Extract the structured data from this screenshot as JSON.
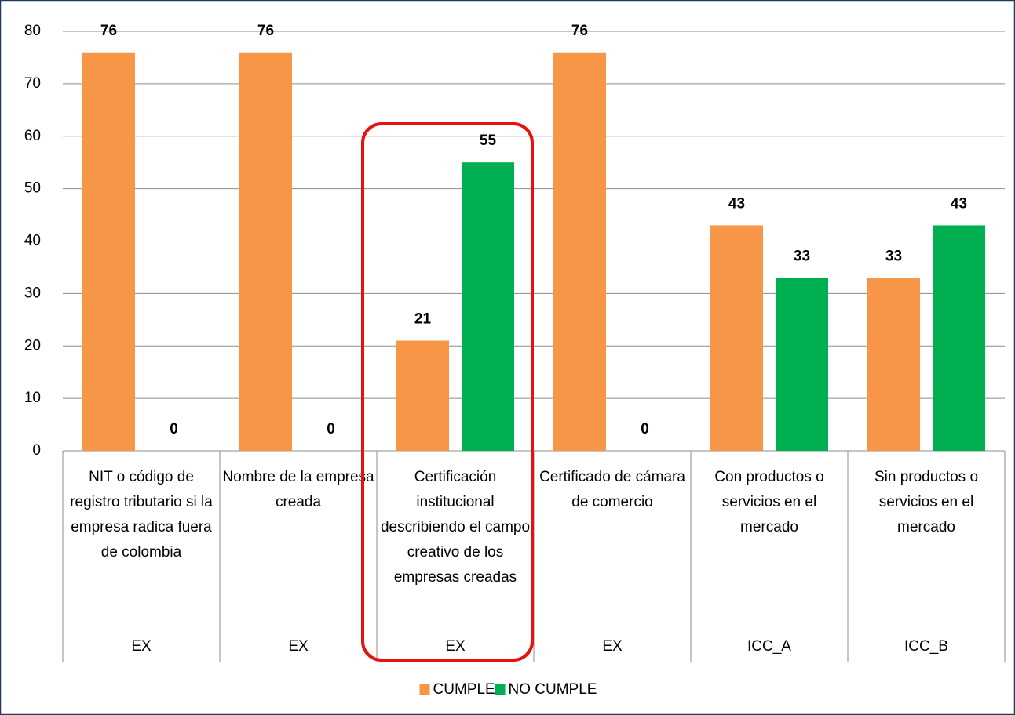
{
  "chart_data": {
    "type": "bar",
    "categories": [
      "NIT o código de registro tributario si la empresa radica fuera de colombia",
      "Nombre de la empresa creada",
      "Certificación institucional describiendo el campo creativo de los empresas creadas",
      "Certificado de cámara de comercio",
      "Con productos o servicios en el mercado",
      "Sin productos o servicios en el mercado"
    ],
    "groups": [
      "EX",
      "EX",
      "EX",
      "EX",
      "ICC_A",
      "ICC_B"
    ],
    "series": [
      {
        "name": "CUMPLE",
        "color": "#f79646",
        "values": [
          76,
          76,
          21,
          76,
          43,
          33
        ]
      },
      {
        "name": "NO CUMPLE",
        "color": "#00b050",
        "values": [
          0,
          0,
          55,
          0,
          33,
          43
        ]
      }
    ],
    "ylim": [
      0,
      80
    ],
    "yticks": [
      0,
      10,
      20,
      30,
      40,
      50,
      60,
      70,
      80
    ],
    "grid": true,
    "legend": "bottom"
  }
}
